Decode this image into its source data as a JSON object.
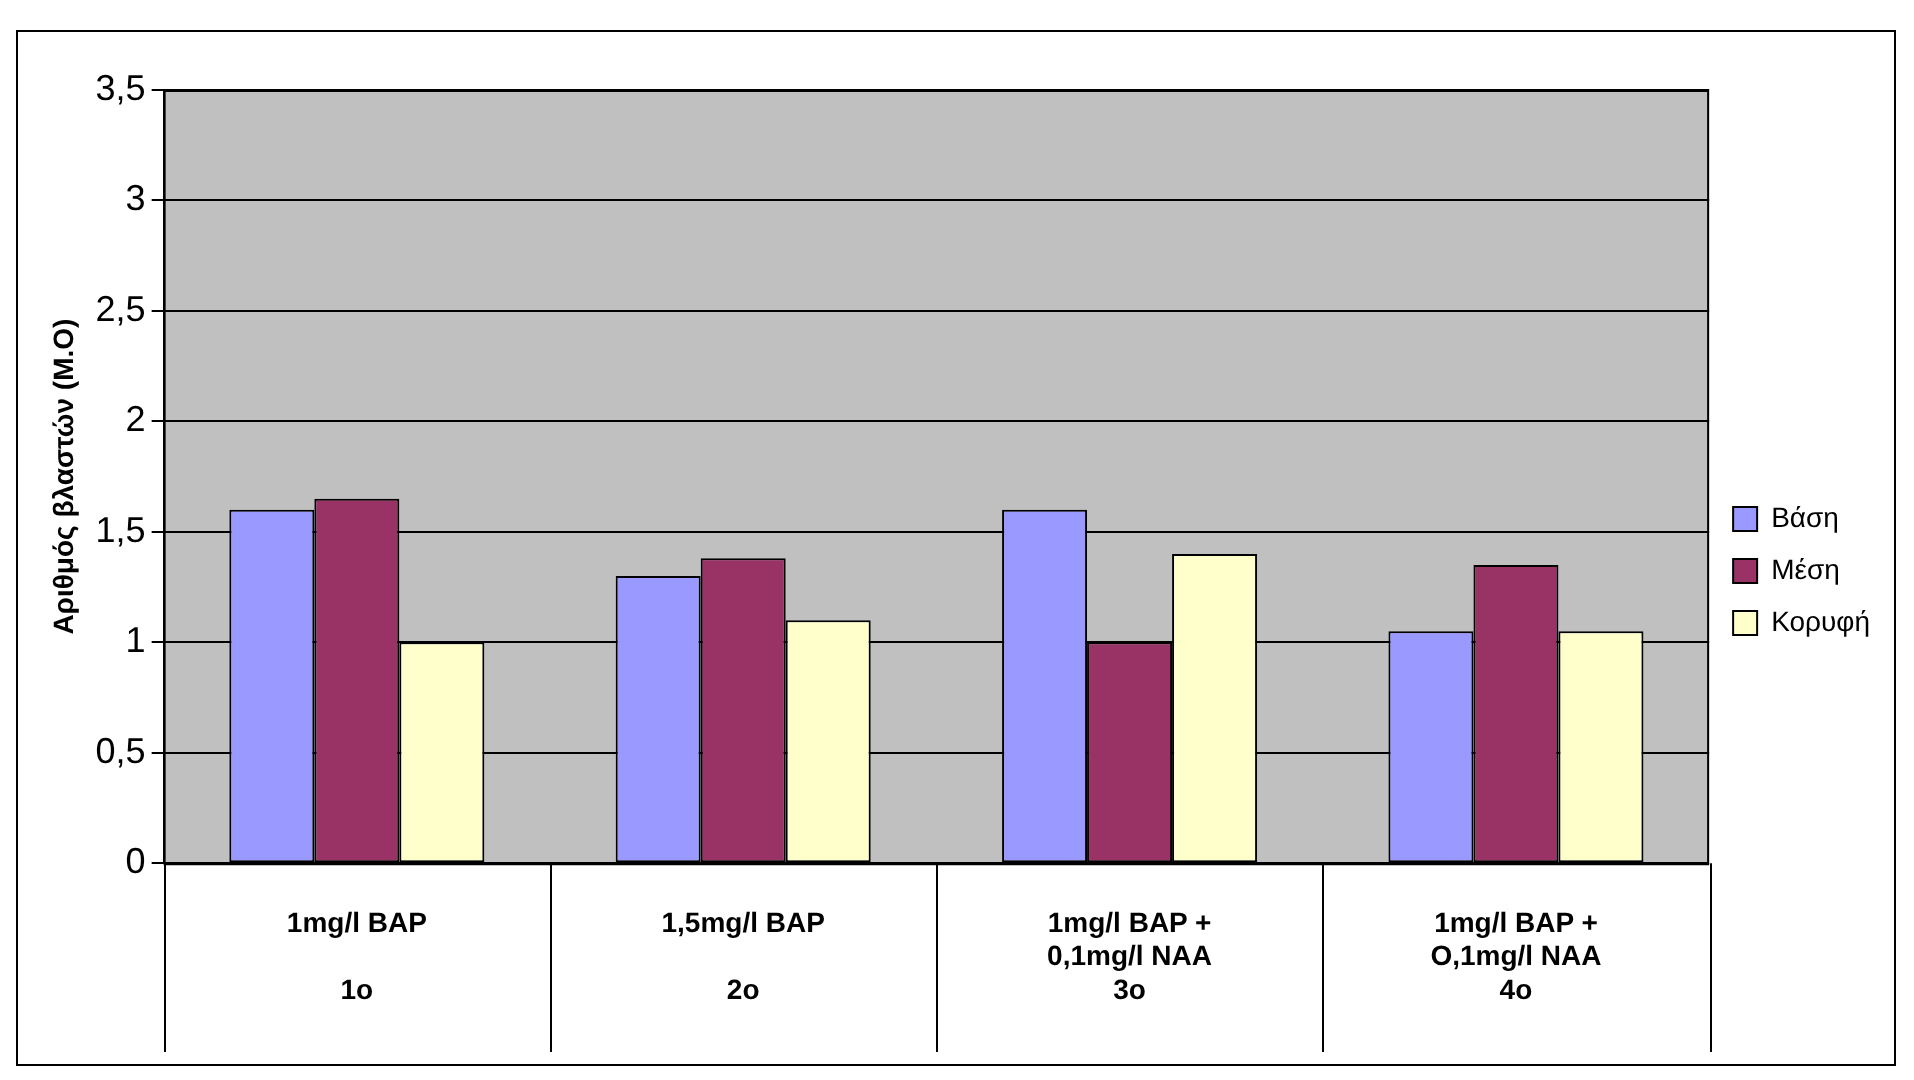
{
  "chart_data": {
    "type": "bar",
    "ylabel": "Αριθμός βλαστών (M.O)",
    "categories": [
      "1mg/l BAP\n\n1o",
      "1,5mg/l BAP\n\n2o",
      "1mg/l BAP +\n0,1mg/l NAA\n3o",
      "1mg/l BAP +\nO,1mg/l NAA\n4o"
    ],
    "series": [
      {
        "name": "Βάση",
        "color": "#9999ff",
        "values": [
          1.6,
          1.3,
          1.6,
          1.05
        ]
      },
      {
        "name": "Μέση",
        "color": "#993366",
        "values": [
          1.65,
          1.38,
          1.0,
          1.35
        ]
      },
      {
        "name": "Κορυφή",
        "color": "#ffffcc",
        "values": [
          1.0,
          1.1,
          1.4,
          1.05
        ]
      }
    ],
    "ylim": [
      0,
      3.5
    ],
    "yticks": [
      {
        "value": 0,
        "label": "0"
      },
      {
        "value": 0.5,
        "label": "0,5"
      },
      {
        "value": 1,
        "label": "1"
      },
      {
        "value": 1.5,
        "label": "1,5"
      },
      {
        "value": 2,
        "label": "2"
      },
      {
        "value": 2.5,
        "label": "2,5"
      },
      {
        "value": 3,
        "label": "3"
      },
      {
        "value": 3.5,
        "label": "3,5"
      }
    ],
    "grid": "y",
    "legend": "right"
  }
}
